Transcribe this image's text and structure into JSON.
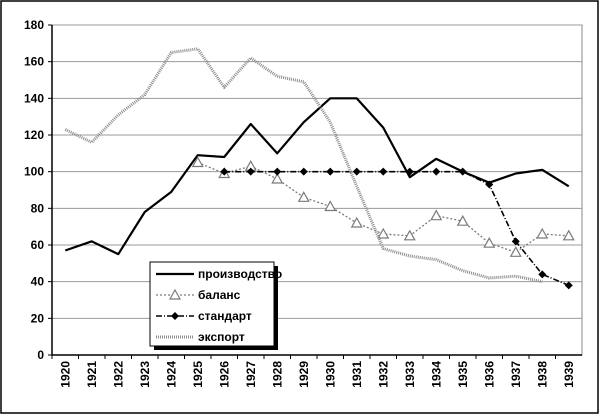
{
  "chart_data": {
    "type": "line",
    "categories": [
      "1920",
      "1921",
      "1922",
      "1923",
      "1924",
      "1925",
      "1926",
      "1927",
      "1928",
      "1929",
      "1930",
      "1931",
      "1932",
      "1933",
      "1934",
      "1935",
      "1936",
      "1937",
      "1938",
      "1939"
    ],
    "series": [
      {
        "name": "производство",
        "color": "#000000",
        "values": [
          57,
          62,
          55,
          78,
          89,
          109,
          108,
          126,
          110,
          127,
          140,
          140,
          124,
          97,
          107,
          100,
          94,
          99,
          101,
          92
        ]
      },
      {
        "name": "баланс",
        "color": "#7a7a7a",
        "values": [
          null,
          null,
          null,
          null,
          null,
          105,
          99,
          103,
          96,
          86,
          81,
          72,
          66,
          65,
          76,
          73,
          61,
          56,
          66,
          65
        ]
      },
      {
        "name": "стандарт",
        "color": "#000000",
        "values": [
          null,
          null,
          null,
          null,
          null,
          null,
          100,
          100,
          100,
          100,
          100,
          100,
          100,
          100,
          100,
          100,
          93,
          62,
          44,
          38
        ]
      },
      {
        "name": "экспорт",
        "color": "#8c8c8c",
        "values": [
          123,
          116,
          131,
          142,
          165,
          167,
          146,
          162,
          152,
          149,
          127,
          92,
          58,
          54,
          52,
          46,
          42,
          43,
          40,
          null
        ]
      }
    ],
    "ylim": [
      0,
      180
    ],
    "yticks": [
      0,
      20,
      40,
      60,
      80,
      100,
      120,
      140,
      160,
      180
    ],
    "grid": true
  }
}
